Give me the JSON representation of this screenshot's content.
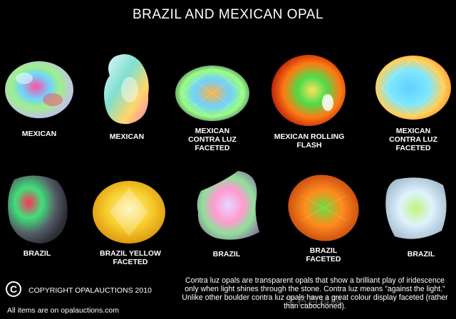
{
  "title": "BRAZIL AND MEXICAN OPAL",
  "gems": [
    {
      "label": "MEXICAN"
    },
    {
      "label": "MEXICAN"
    },
    {
      "label": "MEXICAN\nCONTRA LUZ\nFACETED"
    },
    {
      "label": "MEXICAN ROLLING\nFLASH"
    },
    {
      "label": "MEXICAN\nCONTRA LUZ\nFACETED"
    },
    {
      "label": "BRAZIL"
    },
    {
      "label": "BRAZIL YELLOW\nFACETED"
    },
    {
      "label": "BRAZIL"
    },
    {
      "label": "BRAZIL\nFACETED"
    },
    {
      "label": "BRAZIL"
    }
  ],
  "footer": {
    "copyright_symbol": "C",
    "copyright": "COPYRIGHT OPALAUCTIONS 2010",
    "items_note": "All items are on opalauctions.com"
  },
  "note": "Contra luz  opals are transparent opals that show a brilliant play of iridescence only when light shines through the stone. Contra luz means \"against the light.\" Unlike other boulder contra luz opals have a great colour display faceted (rather than cabochoned).",
  "watermark": "宝石百科网"
}
